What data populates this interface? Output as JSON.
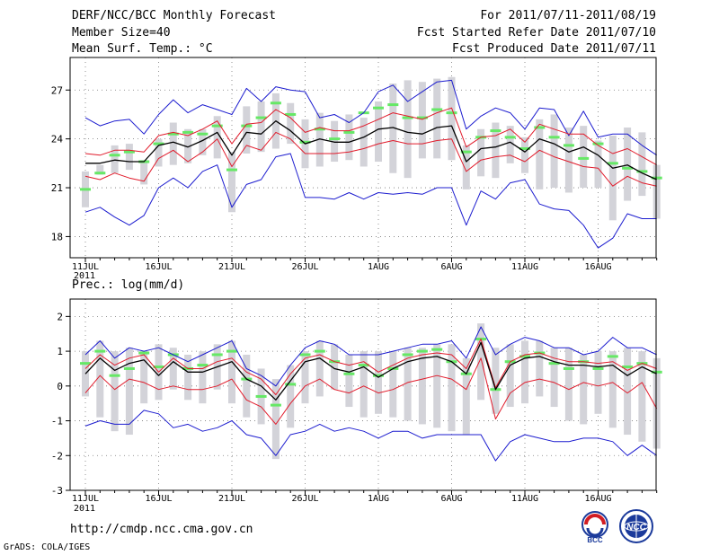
{
  "header": {
    "title": "DERF/NCC/BCC Monthly Forecast",
    "member": "Member Size=40",
    "variable": "Mean Surf. Temp.: °C",
    "period": "For 2011/07/11-2011/08/19",
    "started": "Fcst Started Refer Date 2011/07/10",
    "produced": "Fcst Produced Date 2011/07/11"
  },
  "footer": {
    "url": "http://cmdp.ncc.cma.gov.cn",
    "grads": "GrADS: COLA/IGES"
  },
  "logos": {
    "bcc": "BCC",
    "ncc": "NCC"
  },
  "colors": {
    "grid": "#777777",
    "box": "#d3d3d9",
    "median": "#66e866",
    "mean": "#000000",
    "sd": "#e11b2b",
    "range": "#1c1ccf"
  },
  "chart_data": [
    {
      "type": "line",
      "title": "Mean Surf. Temp.: °C",
      "ylim": [
        16.7,
        29.0
      ],
      "yticks": [
        18,
        21,
        24,
        27
      ],
      "x_tick_labels": [
        "11JUL",
        "16JUL",
        "21JUL",
        "26JUL",
        "1AUG",
        "6AUG",
        "11AUG",
        "16AUG"
      ],
      "year_label": "2011",
      "days": 40,
      "series": [
        {
          "name": "box_top",
          "values": [
            22.0,
            22.4,
            23.6,
            23.7,
            22.7,
            24.0,
            25.0,
            24.6,
            24.6,
            25.4,
            23.2,
            26.0,
            26.3,
            26.8,
            26.2,
            25.2,
            25.6,
            25.1,
            25.5,
            25.3,
            26.3,
            27.4,
            27.6,
            27.5,
            27.7,
            27.8,
            23.6,
            24.6,
            25.0,
            24.8,
            24.1,
            25.2,
            25.5,
            24.7,
            24.8,
            23.9,
            24.2,
            24.7,
            24.4,
            22.4
          ]
        },
        {
          "name": "box_bottom",
          "values": [
            19.8,
            21.8,
            21.9,
            22.1,
            21.2,
            22.3,
            22.4,
            22.5,
            23.0,
            22.8,
            19.5,
            23.1,
            23.2,
            23.4,
            23.7,
            22.2,
            22.3,
            22.6,
            22.7,
            22.3,
            22.6,
            21.9,
            21.6,
            22.8,
            22.8,
            22.7,
            20.9,
            21.7,
            21.6,
            22.5,
            21.9,
            20.9,
            21.0,
            20.7,
            21.0,
            21.0,
            19.0,
            20.2,
            20.5,
            19.1
          ]
        },
        {
          "name": "median",
          "values": [
            20.9,
            21.9,
            23.0,
            23.2,
            22.6,
            23.7,
            24.3,
            24.4,
            24.3,
            24.8,
            22.1,
            24.8,
            25.3,
            26.2,
            25.5,
            23.8,
            24.6,
            24.0,
            24.4,
            25.6,
            25.9,
            26.1,
            25.3,
            25.3,
            25.8,
            25.6,
            23.2,
            24.1,
            24.5,
            24.1,
            23.4,
            24.7,
            24.1,
            23.6,
            22.8,
            23.7,
            22.5,
            22.2,
            22.0,
            21.6
          ]
        },
        {
          "name": "max",
          "values": [
            25.3,
            24.8,
            25.1,
            25.2,
            24.3,
            25.5,
            26.4,
            25.6,
            26.1,
            25.8,
            25.5,
            27.1,
            26.3,
            27.2,
            27.0,
            26.9,
            25.3,
            25.5,
            25.0,
            25.6,
            26.9,
            27.3,
            26.3,
            26.9,
            27.5,
            27.6,
            24.6,
            25.4,
            25.9,
            25.6,
            24.6,
            25.9,
            25.8,
            24.2,
            25.7,
            24.1,
            24.3,
            24.3,
            23.6,
            23.0
          ]
        },
        {
          "name": "mean_plus_sd",
          "values": [
            23.1,
            23.0,
            23.3,
            23.3,
            23.2,
            24.2,
            24.4,
            24.2,
            24.6,
            25.1,
            23.7,
            24.9,
            25.0,
            25.8,
            25.3,
            24.4,
            24.7,
            24.5,
            24.5,
            24.8,
            25.2,
            25.6,
            25.4,
            25.2,
            25.6,
            25.9,
            23.5,
            24.1,
            24.2,
            24.6,
            23.8,
            24.9,
            24.6,
            24.3,
            24.3,
            23.6,
            23.1,
            23.4,
            22.9,
            22.4
          ]
        },
        {
          "name": "mean",
          "values": [
            22.5,
            22.5,
            22.7,
            22.6,
            22.6,
            23.6,
            23.8,
            23.5,
            23.9,
            24.4,
            23.0,
            24.4,
            24.3,
            25.1,
            24.5,
            23.7,
            24.0,
            23.8,
            23.8,
            24.1,
            24.6,
            24.7,
            24.4,
            24.3,
            24.7,
            24.8,
            22.6,
            23.4,
            23.5,
            23.8,
            23.2,
            24.0,
            23.7,
            23.2,
            23.5,
            23.0,
            22.2,
            22.4,
            21.9,
            21.5
          ]
        },
        {
          "name": "mean_minus_sd",
          "values": [
            21.7,
            21.5,
            21.9,
            21.6,
            21.4,
            22.8,
            23.3,
            22.6,
            23.2,
            24.0,
            22.3,
            23.6,
            23.3,
            24.4,
            24.0,
            23.1,
            23.1,
            23.1,
            23.2,
            23.4,
            23.7,
            23.9,
            23.7,
            23.7,
            23.9,
            24.0,
            22.0,
            22.7,
            22.9,
            23.0,
            22.6,
            23.3,
            22.9,
            22.6,
            22.3,
            22.2,
            21.1,
            21.7,
            21.3,
            21.1
          ]
        },
        {
          "name": "min",
          "values": [
            19.5,
            19.8,
            19.2,
            18.7,
            19.3,
            21.0,
            21.6,
            21.0,
            22.0,
            22.4,
            19.8,
            21.2,
            21.5,
            22.9,
            23.1,
            20.4,
            20.4,
            20.3,
            20.7,
            20.3,
            20.7,
            20.6,
            20.7,
            20.6,
            21.0,
            21.0,
            18.7,
            20.8,
            20.3,
            21.3,
            21.5,
            20.0,
            19.7,
            19.6,
            18.7,
            17.3,
            17.9,
            19.4,
            19.1,
            19.1
          ]
        }
      ]
    },
    {
      "type": "line",
      "title": "Prec.: log(mm/d)",
      "ylim": [
        -3,
        2.5
      ],
      "yticks": [
        -3,
        -2,
        -1,
        0,
        1,
        2
      ],
      "x_tick_labels": [
        "11JUL",
        "16JUL",
        "21JUL",
        "26JUL",
        "1AUG",
        "6AUG",
        "11AUG",
        "16AUG"
      ],
      "year_label": "2011",
      "days": 40,
      "series": [
        {
          "name": "box_top",
          "values": [
            1.0,
            1.3,
            1.0,
            1.1,
            1.0,
            1.2,
            1.1,
            0.9,
            1.0,
            1.2,
            1.3,
            0.9,
            0.5,
            0.2,
            0.6,
            1.0,
            1.3,
            1.2,
            0.9,
            1.0,
            1.0,
            1.0,
            1.1,
            1.1,
            1.2,
            1.2,
            0.8,
            1.8,
            1.1,
            1.2,
            1.3,
            1.3,
            1.1,
            1.1,
            0.9,
            1.0,
            1.0,
            1.1,
            1.0,
            0.8
          ]
        },
        {
          "name": "box_bottom",
          "values": [
            -0.3,
            -0.9,
            -1.3,
            -1.4,
            -0.5,
            -0.4,
            -0.1,
            -0.4,
            -0.5,
            -0.1,
            -0.5,
            -0.9,
            -1.1,
            -2.1,
            -1.2,
            -0.5,
            -0.3,
            -0.1,
            -0.6,
            -0.9,
            -0.8,
            -0.9,
            -1.0,
            -1.1,
            -1.2,
            -1.3,
            -1.4,
            -0.4,
            -0.8,
            -0.6,
            -0.5,
            -0.3,
            -0.6,
            -1.0,
            -1.1,
            -0.8,
            -1.2,
            -1.4,
            -1.6,
            -1.8
          ]
        },
        {
          "name": "median",
          "values": [
            0.65,
            1.0,
            0.3,
            0.5,
            0.95,
            0.55,
            0.9,
            0.5,
            0.6,
            0.9,
            1.0,
            0.2,
            -0.3,
            -0.55,
            0.05,
            0.9,
            1.0,
            0.7,
            0.35,
            0.6,
            0.3,
            0.5,
            0.9,
            1.0,
            1.05,
            0.7,
            0.35,
            1.35,
            -0.1,
            0.7,
            0.85,
            0.95,
            0.65,
            0.5,
            0.7,
            0.5,
            0.85,
            0.55,
            0.65,
            0.4
          ]
        },
        {
          "name": "max",
          "values": [
            0.9,
            1.3,
            0.8,
            1.1,
            1.0,
            1.1,
            0.9,
            0.7,
            0.9,
            1.1,
            1.3,
            0.5,
            0.3,
            0.0,
            0.6,
            1.1,
            1.3,
            1.2,
            0.9,
            0.9,
            0.9,
            1.0,
            1.1,
            1.2,
            1.2,
            1.3,
            0.8,
            1.7,
            0.9,
            1.2,
            1.4,
            1.3,
            1.1,
            1.1,
            0.9,
            1.0,
            1.4,
            1.1,
            1.1,
            0.9
          ]
        },
        {
          "name": "mean_plus_sd",
          "values": [
            0.5,
            0.9,
            0.6,
            0.8,
            0.9,
            0.4,
            0.8,
            0.5,
            0.5,
            0.7,
            0.8,
            0.4,
            0.2,
            -0.25,
            0.35,
            0.8,
            0.9,
            0.7,
            0.6,
            0.7,
            0.4,
            0.6,
            0.8,
            0.9,
            0.95,
            0.9,
            0.5,
            1.35,
            -0.05,
            0.7,
            0.9,
            0.95,
            0.8,
            0.7,
            0.7,
            0.65,
            0.7,
            0.45,
            0.65,
            0.5
          ]
        },
        {
          "name": "mean",
          "values": [
            0.35,
            0.8,
            0.45,
            0.65,
            0.75,
            0.3,
            0.7,
            0.4,
            0.4,
            0.55,
            0.7,
            0.2,
            0.0,
            -0.4,
            0.15,
            0.7,
            0.8,
            0.5,
            0.4,
            0.55,
            0.25,
            0.5,
            0.7,
            0.8,
            0.85,
            0.7,
            0.35,
            1.25,
            -0.1,
            0.6,
            0.8,
            0.85,
            0.7,
            0.6,
            0.6,
            0.55,
            0.6,
            0.3,
            0.55,
            0.35
          ]
        },
        {
          "name": "mean_minus_sd",
          "values": [
            -0.2,
            0.3,
            -0.1,
            0.2,
            0.1,
            -0.1,
            0.0,
            -0.1,
            -0.1,
            0.0,
            0.2,
            -0.4,
            -0.6,
            -1.1,
            -0.5,
            0.0,
            0.2,
            -0.1,
            -0.2,
            0.0,
            -0.2,
            -0.1,
            0.1,
            0.2,
            0.3,
            0.2,
            -0.1,
            0.8,
            -0.95,
            -0.2,
            0.1,
            0.2,
            0.1,
            -0.1,
            0.1,
            0.0,
            0.1,
            -0.2,
            0.1,
            -0.65
          ]
        },
        {
          "name": "min",
          "values": [
            -1.15,
            -1.0,
            -1.1,
            -1.1,
            -0.7,
            -0.8,
            -1.2,
            -1.1,
            -1.3,
            -1.2,
            -1.0,
            -1.4,
            -1.5,
            -2.0,
            -1.4,
            -1.3,
            -1.1,
            -1.3,
            -1.2,
            -1.3,
            -1.5,
            -1.3,
            -1.3,
            -1.5,
            -1.4,
            -1.4,
            -1.4,
            -1.4,
            -2.15,
            -1.6,
            -1.4,
            -1.5,
            -1.6,
            -1.6,
            -1.5,
            -1.5,
            -1.6,
            -2.0,
            -1.7,
            -2.0
          ]
        }
      ]
    }
  ]
}
